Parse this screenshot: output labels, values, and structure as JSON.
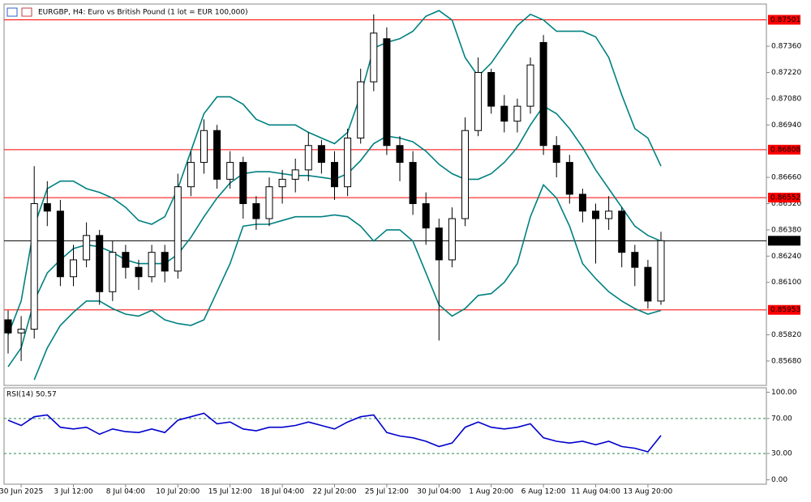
{
  "chart_data": [
    {
      "type": "candlestick",
      "title": "EURGBP, H4:  Euro vs British Pound (1 lot = EUR 100,000)",
      "categories": [
        null,
        "30 Jun 2025",
        null,
        null,
        null,
        "3 Jul 12:00",
        null,
        null,
        null,
        "8 Jul 04:00",
        null,
        null,
        null,
        "10 Jul 20:00",
        null,
        null,
        null,
        "15 Jul 12:00",
        null,
        null,
        null,
        "18 Jul 04:00",
        null,
        null,
        null,
        "22 Jul 20:00",
        null,
        null,
        null,
        "25 Jul 12:00",
        null,
        null,
        null,
        "30 Jul 04:00",
        null,
        null,
        null,
        "1 Aug 20:00",
        null,
        null,
        null,
        "6 Aug 12:00",
        null,
        null,
        null,
        "11 Aug 04:00",
        null,
        null,
        null,
        "13 Aug 20:00",
        null
      ],
      "open": [
        0.859,
        0.8583,
        0.8585,
        0.8652,
        0.8648,
        0.8613,
        0.8622,
        0.8635,
        0.8605,
        0.8626,
        0.8618,
        0.8613,
        0.8626,
        0.8616,
        0.8661,
        0.8674,
        0.8691,
        0.8665,
        0.8674,
        0.8652,
        0.8644,
        0.8661,
        0.8665,
        0.867,
        0.8683,
        0.8674,
        0.8661,
        0.8687,
        0.8717,
        0.874,
        0.8683,
        0.8674,
        0.8652,
        0.8639,
        0.8622,
        0.8644,
        0.8691,
        0.8722,
        0.8704,
        0.8696,
        0.8704,
        0.8738,
        0.8683,
        0.8674,
        0.8657,
        0.8648,
        0.8644,
        0.8648,
        0.8626,
        0.8618,
        0.86
      ],
      "high": [
        0.8595,
        0.8592,
        0.8672,
        0.8664,
        0.8654,
        0.863,
        0.8642,
        0.8638,
        0.8632,
        0.863,
        0.8622,
        0.863,
        0.863,
        0.8668,
        0.868,
        0.8697,
        0.8694,
        0.868,
        0.8677,
        0.8656,
        0.8666,
        0.867,
        0.8676,
        0.869,
        0.8686,
        0.868,
        0.8692,
        0.8724,
        0.8753,
        0.8746,
        0.8688,
        0.868,
        0.8658,
        0.8644,
        0.865,
        0.8698,
        0.873,
        0.8724,
        0.871,
        0.8708,
        0.873,
        0.8742,
        0.8688,
        0.8678,
        0.866,
        0.8652,
        0.8656,
        0.865,
        0.863,
        0.8622,
        0.8637
      ],
      "low": [
        0.8572,
        0.8568,
        0.858,
        0.864,
        0.8608,
        0.8608,
        0.8618,
        0.8598,
        0.86,
        0.8612,
        0.8606,
        0.861,
        0.861,
        0.8612,
        0.8656,
        0.8668,
        0.866,
        0.866,
        0.8644,
        0.8638,
        0.864,
        0.8652,
        0.8658,
        0.8664,
        0.8668,
        0.8654,
        0.8656,
        0.8684,
        0.8712,
        0.8678,
        0.8664,
        0.8646,
        0.863,
        0.8579,
        0.8618,
        0.864,
        0.8688,
        0.87,
        0.869,
        0.869,
        0.87,
        0.8678,
        0.8666,
        0.8652,
        0.8642,
        0.862,
        0.8638,
        0.8618,
        0.8608,
        0.8596,
        0.8598
      ],
      "close": [
        0.8583,
        0.8585,
        0.8652,
        0.8648,
        0.8613,
        0.8622,
        0.8635,
        0.8605,
        0.8626,
        0.8618,
        0.8613,
        0.8626,
        0.8616,
        0.8661,
        0.8674,
        0.8691,
        0.8665,
        0.8674,
        0.8652,
        0.8644,
        0.8661,
        0.8665,
        0.867,
        0.8683,
        0.8674,
        0.8661,
        0.8687,
        0.8717,
        0.8743,
        0.8683,
        0.8674,
        0.8652,
        0.8639,
        0.8622,
        0.8644,
        0.8691,
        0.8722,
        0.8704,
        0.8696,
        0.8704,
        0.8726,
        0.8683,
        0.8674,
        0.8657,
        0.8648,
        0.8644,
        0.8648,
        0.8626,
        0.8618,
        0.86,
        0.86322
      ],
      "bands": {
        "color": "#008080",
        "upper": [
          0.8582,
          0.86,
          0.864,
          0.866,
          0.8664,
          0.8664,
          0.866,
          0.8658,
          0.8655,
          0.865,
          0.8643,
          0.8641,
          0.8645,
          0.866,
          0.868,
          0.87,
          0.8709,
          0.8709,
          0.8705,
          0.8697,
          0.8694,
          0.8694,
          0.8694,
          0.869,
          0.8687,
          0.8684,
          0.869,
          0.871,
          0.8735,
          0.8738,
          0.874,
          0.8744,
          0.8752,
          0.8755,
          0.875,
          0.873,
          0.872,
          0.8727,
          0.8737,
          0.8747,
          0.8753,
          0.875,
          0.8744,
          0.8744,
          0.8744,
          0.8741,
          0.873,
          0.871,
          0.8692,
          0.8687,
          0.8672
        ],
        "middle": [
          0.8565,
          0.8575,
          0.86,
          0.8615,
          0.8622,
          0.8628,
          0.863,
          0.8629,
          0.8626,
          0.8622,
          0.862,
          0.862,
          0.862,
          0.8625,
          0.8634,
          0.8645,
          0.8655,
          0.8663,
          0.8668,
          0.8669,
          0.8669,
          0.8668,
          0.8667,
          0.8667,
          0.8666,
          0.8665,
          0.8668,
          0.8675,
          0.8684,
          0.8688,
          0.8687,
          0.8685,
          0.868,
          0.8673,
          0.8668,
          0.8665,
          0.8665,
          0.8668,
          0.8674,
          0.8682,
          0.8694,
          0.8704,
          0.87,
          0.8692,
          0.8682,
          0.867,
          0.866,
          0.865,
          0.864,
          0.8635,
          0.8632
        ],
        "lower": [
          null,
          null,
          0.8558,
          0.8575,
          0.8587,
          0.8594,
          0.86,
          0.86,
          0.8596,
          0.8593,
          0.8592,
          0.8595,
          0.859,
          0.8588,
          0.8587,
          0.859,
          0.8605,
          0.862,
          0.864,
          0.8641,
          0.8641,
          0.8643,
          0.8645,
          0.8645,
          0.8645,
          0.8646,
          0.8645,
          0.864,
          0.8632,
          0.8638,
          0.8638,
          0.8632,
          0.8615,
          0.8598,
          0.8592,
          0.8596,
          0.8603,
          0.8604,
          0.861,
          0.862,
          0.8645,
          0.8662,
          0.8655,
          0.864,
          0.862,
          0.8612,
          0.8605,
          0.86,
          0.8596,
          0.8593,
          0.8595
        ]
      },
      "levels": [
        0.87501,
        0.86808,
        0.86552,
        0.85953
      ],
      "level_color": "#ff0000",
      "last_price": 0.86322,
      "ylim": [
        0.8555,
        0.87585
      ],
      "yticks": [
        {
          "value": 0.8736,
          "label": "0.87360"
        },
        {
          "value": 0.8722,
          "label": "0.87220"
        },
        {
          "value": 0.8708,
          "label": "0.87080"
        },
        {
          "value": 0.8694,
          "label": "0.86940"
        },
        {
          "value": 0.8666,
          "label": "0.86660"
        },
        {
          "value": 0.8652,
          "label": "0.86520"
        },
        {
          "value": 0.8638,
          "label": "0.86380"
        },
        {
          "value": 0.8624,
          "label": "0.86240"
        },
        {
          "value": 0.861,
          "label": "0.86100"
        },
        {
          "value": 0.8582,
          "label": "0.85820"
        },
        {
          "value": 0.8568,
          "label": "0.85680"
        }
      ]
    },
    {
      "type": "line",
      "title": "RSI(14) 50.57",
      "color": "#0000cd",
      "values": [
        68,
        62,
        72,
        74,
        60,
        58,
        60,
        52,
        58,
        55,
        54,
        58,
        54,
        68,
        72,
        76,
        64,
        66,
        58,
        56,
        60,
        60,
        62,
        66,
        62,
        58,
        66,
        72,
        74,
        54,
        50,
        48,
        44,
        38,
        42,
        60,
        66,
        60,
        58,
        60,
        64,
        48,
        44,
        42,
        44,
        40,
        44,
        38,
        36,
        32,
        50.57
      ],
      "levels": [
        70,
        30
      ],
      "ylim": [
        -5,
        105
      ],
      "yticks": [
        {
          "value": 100,
          "label": "100.00"
        },
        {
          "value": 70,
          "label": "70.00"
        },
        {
          "value": 30,
          "label": "30.00"
        },
        {
          "value": 0,
          "label": "0.00"
        }
      ]
    }
  ]
}
